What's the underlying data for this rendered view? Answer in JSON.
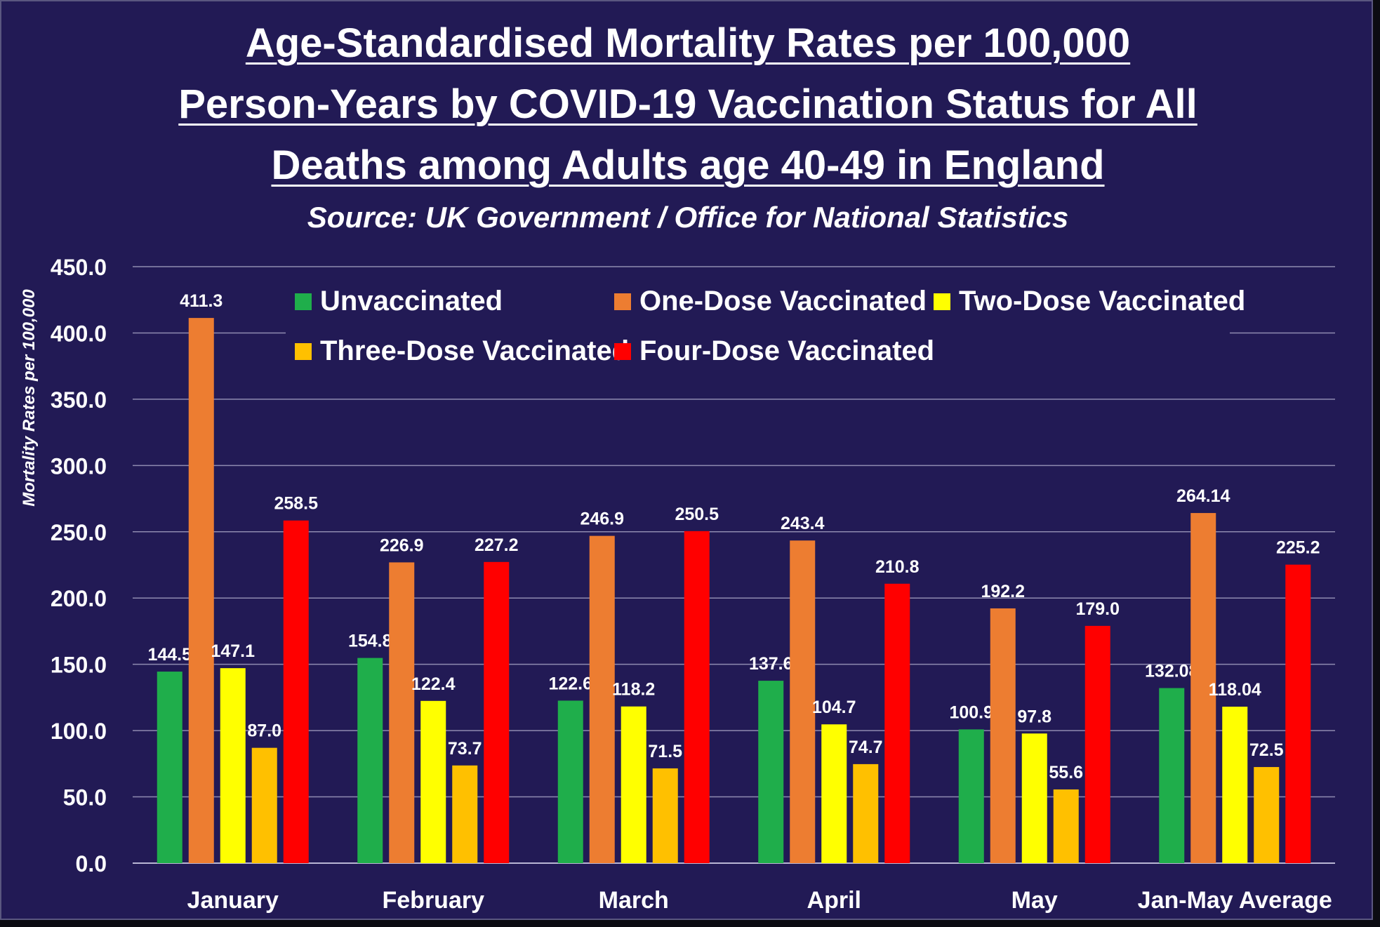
{
  "chart_data": {
    "type": "bar",
    "title": [
      "Age-Standardised Mortality Rates per 100,000",
      "Person-Years by COVID-19 Vaccination Status for All",
      "Deaths among Adults age 40-49 in England"
    ],
    "subtitle": "Source: UK Government / Office for National Statistics",
    "ylabel": "Mortality Rates per 100,000",
    "xlabel": "",
    "ylim": [
      0,
      450
    ],
    "yticks": [
      "0.0",
      "50.0",
      "100.0",
      "150.0",
      "200.0",
      "250.0",
      "300.0",
      "350.0",
      "400.0",
      "450.0"
    ],
    "grid": true,
    "legend_position": "top",
    "categories": [
      "January",
      "February",
      "March",
      "April",
      "May",
      "Jan-May Average"
    ],
    "series": [
      {
        "name": "Unvaccinated",
        "color": "#1fae4b",
        "values": [
          144.5,
          154.8,
          122.6,
          137.6,
          100.9,
          132.08
        ],
        "labels": [
          "144.5",
          "154.8",
          "122.6",
          "137.6",
          "100.9",
          "132.08"
        ]
      },
      {
        "name": "One-Dose Vaccinated",
        "color": "#ed7d31",
        "values": [
          411.3,
          226.9,
          246.9,
          243.4,
          192.2,
          264.14
        ],
        "labels": [
          "411.3",
          "226.9",
          "246.9",
          "243.4",
          "192.2",
          "264.14"
        ]
      },
      {
        "name": "Two-Dose Vaccinated",
        "color": "#ffff00",
        "values": [
          147.1,
          122.4,
          118.2,
          104.7,
          97.8,
          118.04
        ],
        "labels": [
          "147.1",
          "122.4",
          "118.2",
          "104.7",
          "97.8",
          "118.04"
        ]
      },
      {
        "name": "Three-Dose Vaccinated",
        "color": "#ffc000",
        "values": [
          87.0,
          73.7,
          71.5,
          74.7,
          55.6,
          72.5
        ],
        "labels": [
          "87.0",
          "73.7",
          "71.5",
          "74.7",
          "55.6",
          "72.5"
        ]
      },
      {
        "name": "Four-Dose Vaccinated",
        "color": "#ff0000",
        "values": [
          258.5,
          227.2,
          250.5,
          210.8,
          179.0,
          225.2
        ],
        "labels": [
          "258.5",
          "227.2",
          "250.5",
          "210.8",
          "179.0",
          "225.2"
        ]
      }
    ]
  }
}
